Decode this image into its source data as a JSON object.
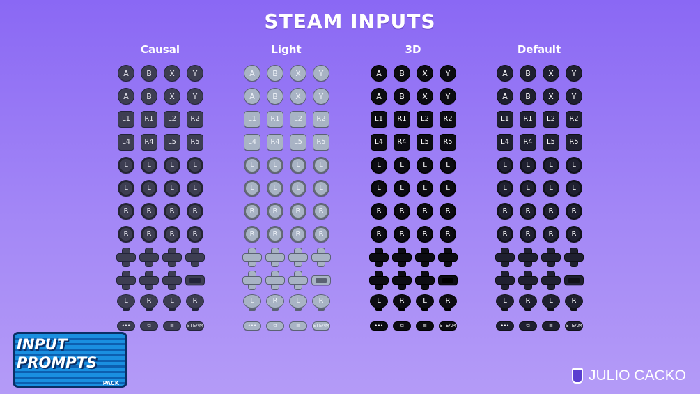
{
  "title": "STEAM INPUTS",
  "styles": [
    {
      "name": "Causal",
      "bg": "#3d3e52",
      "fg": "#e8e8f0",
      "bd": "#23243a"
    },
    {
      "name": "Light",
      "bg": "#a8b3c4",
      "fg": "#eef2f8",
      "bd": "#5b6273"
    },
    {
      "name": "3D",
      "bg": "#0c0c12",
      "fg": "#ffffff",
      "bd": "#000000"
    },
    {
      "name": "Default",
      "bg": "#1f2030",
      "fg": "#ffffff",
      "bd": "#111118"
    }
  ],
  "rows": [
    {
      "type": "round",
      "labels": [
        "A",
        "B",
        "X",
        "Y"
      ]
    },
    {
      "type": "round",
      "labels": [
        "A",
        "B",
        "X",
        "Y"
      ]
    },
    {
      "type": "square",
      "labels": [
        "L1",
        "R1",
        "L2",
        "R2"
      ]
    },
    {
      "type": "square",
      "labels": [
        "L4",
        "R4",
        "L5",
        "R5"
      ]
    },
    {
      "type": "stick",
      "labels": [
        "L",
        "L",
        "L",
        "L"
      ]
    },
    {
      "type": "stick",
      "labels": [
        "L",
        "L",
        "L",
        "L"
      ]
    },
    {
      "type": "stick",
      "labels": [
        "R",
        "R",
        "R",
        "R"
      ]
    },
    {
      "type": "stick",
      "labels": [
        "R",
        "R",
        "R",
        "R"
      ]
    },
    {
      "type": "dpad",
      "labels": [
        "",
        "",
        "",
        ""
      ]
    },
    {
      "type": "dpad",
      "labels": [
        "",
        "",
        "",
        "screen"
      ]
    },
    {
      "type": "s3d",
      "labels": [
        "L",
        "R",
        "L",
        "R"
      ]
    },
    {
      "type": "pill",
      "labels": [
        "•••",
        "⧉",
        "≡",
        "STEAM"
      ]
    }
  ],
  "logo": {
    "line1": "INPUT",
    "line2": "PROMPTS",
    "pack": "PACK",
    "backdrop": "SUPER"
  },
  "author": "JULIO CACKO"
}
